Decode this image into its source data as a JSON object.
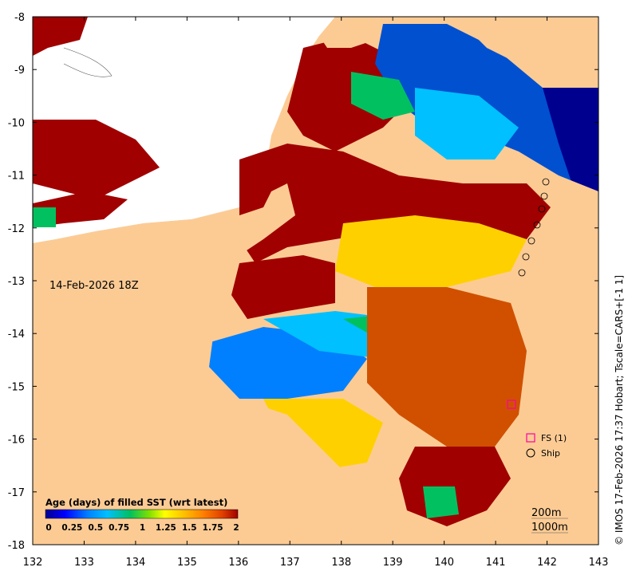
{
  "map": {
    "date_label": "14-Feb-2026 18Z",
    "x_ticks": [
      "132",
      "133",
      "134",
      "135",
      "136",
      "137",
      "138",
      "139",
      "140",
      "141",
      "142",
      "143"
    ],
    "y_ticks": [
      "-8",
      "-9",
      "-10",
      "-11",
      "-12",
      "-13",
      "-14",
      "-15",
      "-16",
      "-17",
      "-18"
    ],
    "lon_range": [
      132,
      143
    ],
    "lat_range": [
      -18,
      -8
    ],
    "land_color": "#fccb94",
    "no_data_color": "#ffffff",
    "credit": "© IMOS 17-Feb-2026 17:37 Hobart; Tscale=CARS+[-1 1]"
  },
  "legend": {
    "title": "Age (days) of filled SST (wrt latest)",
    "tick_labels": [
      "0",
      "0.25",
      "0.5",
      "0.75",
      "1",
      "1.25",
      "1.5",
      "1.75",
      "2"
    ],
    "colormap": [
      "#00008f",
      "#0000ff",
      "#0080ff",
      "#00c0ff",
      "#00c060",
      "#80e000",
      "#ffff00",
      "#ffc000",
      "#ff8000",
      "#e04000",
      "#a00000"
    ]
  },
  "markers": {
    "fs_label": "FS (1)",
    "ship_label": "Ship",
    "fs_color": "#ff00a0",
    "ship_color": "#000000"
  },
  "contours": {
    "c200": "200m",
    "c1000": "1000m"
  }
}
